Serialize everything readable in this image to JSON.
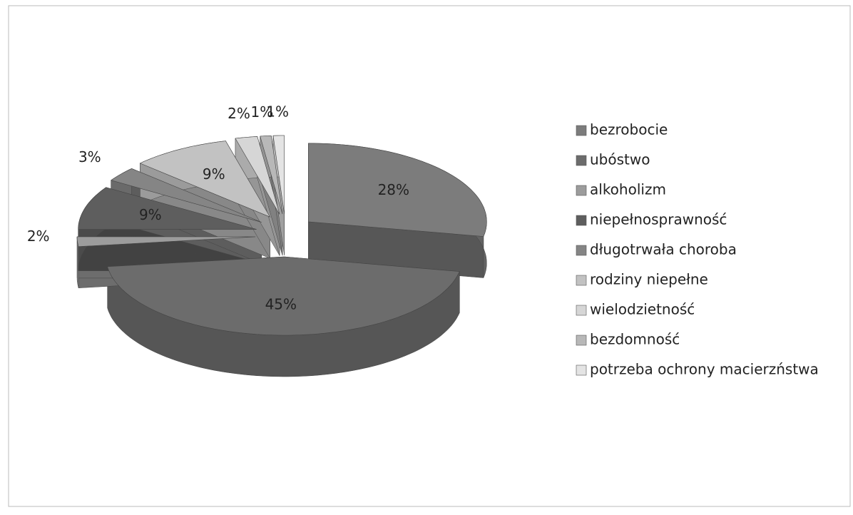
{
  "chart_data": {
    "type": "pie",
    "categories": [
      "bezrobocie",
      "ubóstwo",
      "alkoholizm",
      "niepełnosprawność",
      "długotrwała choroba",
      "rodziny niepełne",
      "wielodzietność",
      "bezdomność",
      "potrzeba ochrony macierzństwa"
    ],
    "values": [
      28,
      45,
      2,
      9,
      3,
      9,
      2,
      1,
      1
    ],
    "value_labels": [
      "28%",
      "45%",
      "2%",
      "9%",
      "3%",
      "9%",
      "2%",
      "1%",
      "1%"
    ],
    "colors": [
      "#7c7c7c",
      "#6c6c6c",
      "#9c9c9c",
      "#5e5e5e",
      "#858585",
      "#c2c2c2",
      "#d6d6d6",
      "#b8b8b8",
      "#e4e4e4"
    ],
    "legend": "right"
  }
}
